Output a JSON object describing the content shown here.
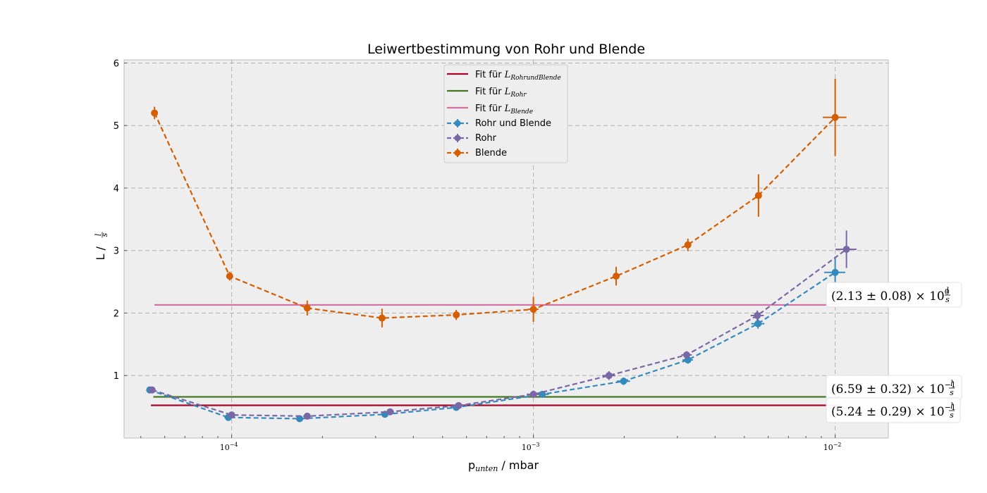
{
  "chart_data": {
    "type": "scatter",
    "title": "Leiwertbestimmung von Rohr und Blende",
    "xlabel": {
      "base": "p",
      "sub": "unten",
      "rest": " / mbar"
    },
    "ylabel": {
      "base": "L / ",
      "num": "l",
      "den": "s"
    },
    "xscale": "log",
    "xlim": [
      4.4e-05,
      0.015
    ],
    "ylim": [
      0.0,
      6.05
    ],
    "yticks": [
      1,
      2,
      3,
      4,
      5,
      6
    ],
    "xticks": [
      {
        "value": 0.0001,
        "base": "10",
        "exp": "−4"
      },
      {
        "value": 0.001,
        "base": "10",
        "exp": "−3"
      },
      {
        "value": 0.01,
        "base": "10",
        "exp": "−2"
      }
    ],
    "grid": true,
    "legend_position": "top-center",
    "fits": [
      {
        "name": "Fit für ",
        "math": "L",
        "sub": "RohrundBlende",
        "value": 0.524,
        "x_range": [
          5.4e-05,
          0.0105
        ],
        "color": "#a60628"
      },
      {
        "name": "Fit für ",
        "math": "L",
        "sub": "Rohr",
        "value": 0.659,
        "x_range": [
          5.5e-05,
          0.0105
        ],
        "color": "#467821"
      },
      {
        "name": "Fit für ",
        "math": "L",
        "sub": "Blende",
        "value": 2.13,
        "x_range": [
          5.55e-05,
          0.0105
        ],
        "color": "#d46ea4"
      }
    ],
    "series": [
      {
        "name": "Rohr und Blende",
        "color": "#348abd",
        "x": [
          5.35e-05,
          9.75e-05,
          0.000168,
          0.000322,
          0.000555,
          0.00107,
          0.00199,
          0.00325,
          0.00555,
          0.01
        ],
        "y": [
          0.77,
          0.33,
          0.31,
          0.38,
          0.49,
          0.7,
          0.91,
          1.25,
          1.83,
          2.65
        ],
        "yerr": [
          0.03,
          0.02,
          0.02,
          0.02,
          0.03,
          0.05,
          0.06,
          0.06,
          0.08,
          0.25
        ],
        "xerr_rel": [
          0.02,
          0.03,
          0.03,
          0.03,
          0.04,
          0.05,
          0.05,
          0.04,
          0.05,
          0.08
        ]
      },
      {
        "name": "Rohr",
        "color": "#7a68a6",
        "x": [
          5.45e-05,
          0.0001,
          0.000178,
          0.000335,
          0.000565,
          0.001,
          0.00178,
          0.00322,
          0.00552,
          0.0109
        ],
        "y": [
          0.77,
          0.37,
          0.35,
          0.42,
          0.52,
          0.7,
          1.0,
          1.33,
          1.96,
          3.02
        ],
        "yerr": [
          0.03,
          0.02,
          0.02,
          0.02,
          0.03,
          0.06,
          0.07,
          0.06,
          0.08,
          0.3
        ],
        "xerr_rel": [
          0.02,
          0.03,
          0.03,
          0.03,
          0.04,
          0.05,
          0.05,
          0.04,
          0.05,
          0.08
        ]
      },
      {
        "name": "Blende",
        "color": "#d55e00",
        "x": [
          5.55e-05,
          9.85e-05,
          0.000178,
          0.000315,
          0.000555,
          0.001,
          0.00188,
          0.00325,
          0.00557,
          0.01
        ],
        "y": [
          5.2,
          2.59,
          2.08,
          1.92,
          1.97,
          2.06,
          2.59,
          3.09,
          3.88,
          5.13
        ],
        "yerr": [
          0.1,
          0.07,
          0.12,
          0.15,
          0.08,
          0.2,
          0.15,
          0.1,
          0.34,
          0.62
        ],
        "xerr_rel": [
          0.01,
          0.01,
          0.01,
          0.01,
          0.01,
          0.04,
          0.01,
          0.02,
          0.01,
          0.09
        ]
      }
    ],
    "annotations": [
      {
        "text": "(2.13 ± 0.08) × 10",
        "exp": "0",
        "num": "l",
        "den": "s",
        "y": 2.13
      },
      {
        "text": "(6.59 ± 0.32) × 10",
        "exp": "−1",
        "num": "l",
        "den": "s",
        "y": 0.659
      },
      {
        "text": "(5.24 ± 0.29) × 10",
        "exp": "−1",
        "num": "l",
        "den": "s",
        "y": 0.524
      }
    ]
  }
}
